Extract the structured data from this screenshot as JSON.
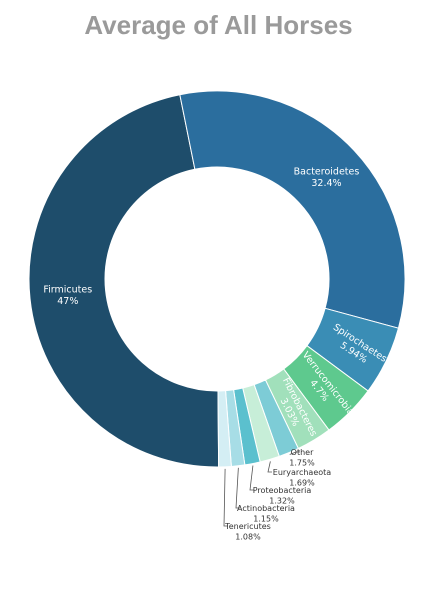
{
  "chart_data": {
    "type": "pie",
    "title": "Average of All Horses",
    "hole": true,
    "slices": [
      {
        "label": "Firmicutes",
        "value": 47,
        "value_text": "47%",
        "color": "#1e4d6b"
      },
      {
        "label": "Bacteroidetes",
        "value": 32.4,
        "value_text": "32.4%",
        "color": "#2b6e9e"
      },
      {
        "label": "Spirochaetes",
        "value": 5.94,
        "value_text": "5.94%",
        "color": "#3a8db5"
      },
      {
        "label": "Verrucomicrobia",
        "value": 4.7,
        "value_text": "4.7%",
        "color": "#5ec98e"
      },
      {
        "label": "Fibrobacteres",
        "value": 3.03,
        "value_text": "3.03%",
        "color": "#a1e0bb"
      },
      {
        "label": "Other",
        "value": 1.75,
        "value_text": "1.75%",
        "color": "#7dccd6"
      },
      {
        "label": "Euryarchaeota",
        "value": 1.69,
        "value_text": "1.69%",
        "color": "#c7eed8"
      },
      {
        "label": "Proteobacteria",
        "value": 1.32,
        "value_text": "1.32%",
        "color": "#5bc0ce"
      },
      {
        "label": "Actinobacteria",
        "value": 1.15,
        "value_text": "1.15%",
        "color": "#a7dde6"
      },
      {
        "label": "Tenericutes",
        "value": 1.08,
        "value_text": "1.08%",
        "color": "#d4eef4"
      }
    ]
  }
}
